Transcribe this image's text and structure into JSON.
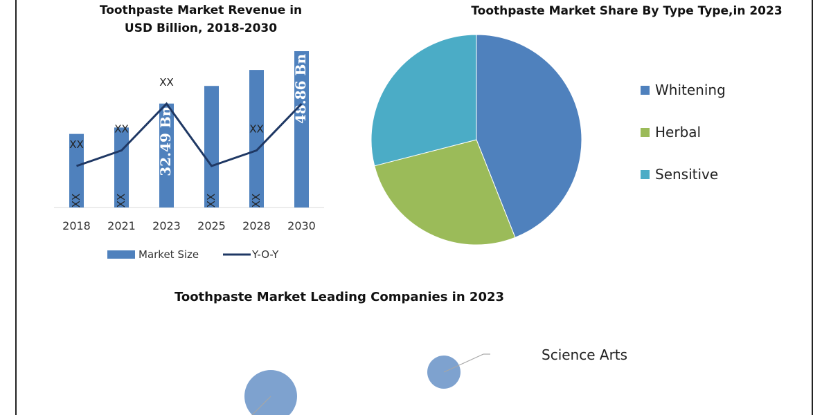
{
  "chart_data": [
    {
      "type": "bar",
      "title": "Toothpaste Market Revenue in USD Billion, 2018-2030",
      "title_lines": [
        "Toothpaste Market Revenue in",
        "USD Billion, 2018-2030"
      ],
      "categories": [
        "2018",
        "2021",
        "2023",
        "2025",
        "2028",
        "2030"
      ],
      "series": [
        {
          "name": "Market Size",
          "kind": "bar",
          "color": "#4f81bd",
          "values": [
            23,
            25,
            32.49,
            38,
            43,
            48.86
          ],
          "labels": [
            "XX",
            "XX",
            "32.49 Bn",
            "XX",
            "XX",
            "48.86 Bn"
          ]
        },
        {
          "name": "Y-O-Y",
          "kind": "line",
          "color": "#1f3864",
          "values": [
            4,
            5,
            8,
            4,
            5,
            8
          ],
          "labels": [
            "XX",
            "XX",
            "XX",
            "",
            "XX",
            ""
          ]
        }
      ],
      "legend_position": "bottom",
      "grid": false
    },
    {
      "type": "pie",
      "title": "Toothpaste Market Share By  Type Type,in 2023",
      "categories": [
        "Whitening",
        "Herbal",
        "Sensitive"
      ],
      "values": [
        44,
        27,
        29
      ],
      "colors": [
        "#4f81bd",
        "#9bbb59",
        "#4bacc6"
      ],
      "legend_position": "right"
    },
    {
      "type": "scatter",
      "title": "Toothpaste Market Leading Companies in 2023",
      "points": [
        {
          "label": "Science Arts",
          "size": "small"
        },
        {
          "label": "",
          "size": "large"
        }
      ],
      "color": "#7ea2cf"
    }
  ]
}
